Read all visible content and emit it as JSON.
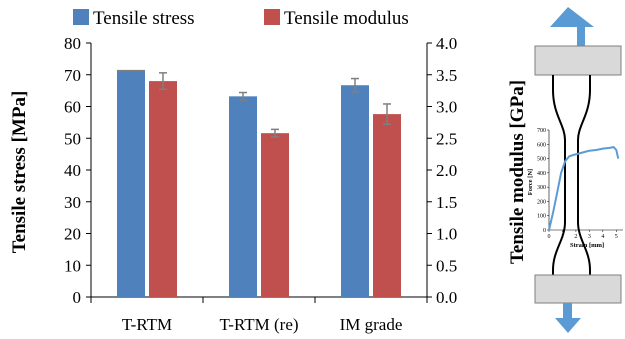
{
  "chart_data": {
    "type": "bar",
    "categories": [
      "T-RTM",
      "T-RTM (re)",
      "IM grade"
    ],
    "series": [
      {
        "name": "Tensile stress",
        "axis": "left",
        "color": "#4F81BD",
        "values": [
          71.3,
          63.2,
          66.7
        ],
        "errors": [
          0,
          1.2,
          2.1
        ]
      },
      {
        "name": "Tensile modulus",
        "axis": "right",
        "color": "#C0504D",
        "values": [
          3.4,
          2.58,
          2.88
        ],
        "errors": [
          0.13,
          0.06,
          0.16
        ]
      }
    ],
    "ylabel_left": "Tensile stress [MPa]",
    "ylabel_right": "Tensile modulus  [GPa]",
    "ylim_left": [
      0,
      80
    ],
    "ylim_right": [
      0.0,
      4.0
    ],
    "yticks_left": [
      "0",
      "10",
      "20",
      "30",
      "40",
      "50",
      "60",
      "70",
      "80"
    ],
    "yticks_right": [
      "0.0",
      "0.5",
      "1.0",
      "1.5",
      "2.0",
      "2.5",
      "3.0",
      "3.5",
      "4.0"
    ],
    "grid": false,
    "legend": "top"
  },
  "inset": {
    "type": "line",
    "xlabel": "Strain [mm]",
    "ylabel": "Force [N]",
    "xticks": [
      "0",
      "1",
      "2",
      "3",
      "4",
      "5"
    ],
    "yticks": [
      "0",
      "100",
      "200",
      "300",
      "400",
      "500",
      "600",
      "700"
    ],
    "xlim": [
      0,
      5.5
    ],
    "ylim": [
      0,
      700
    ],
    "color": "#5B9BD5",
    "x": [
      0,
      0.3,
      0.6,
      0.9,
      1.2,
      1.5,
      1.8,
      2.2,
      2.6,
      3.0,
      3.5,
      4.0,
      4.5,
      4.8,
      5.0,
      5.1,
      5.15
    ],
    "y": [
      0,
      120,
      260,
      400,
      480,
      515,
      525,
      535,
      545,
      555,
      560,
      570,
      575,
      580,
      560,
      520,
      500
    ]
  },
  "colors": {
    "arrow": "#5B9BD5",
    "grip": "#D9D9D9",
    "axis": "#000000",
    "error": "#7F7F7F"
  }
}
